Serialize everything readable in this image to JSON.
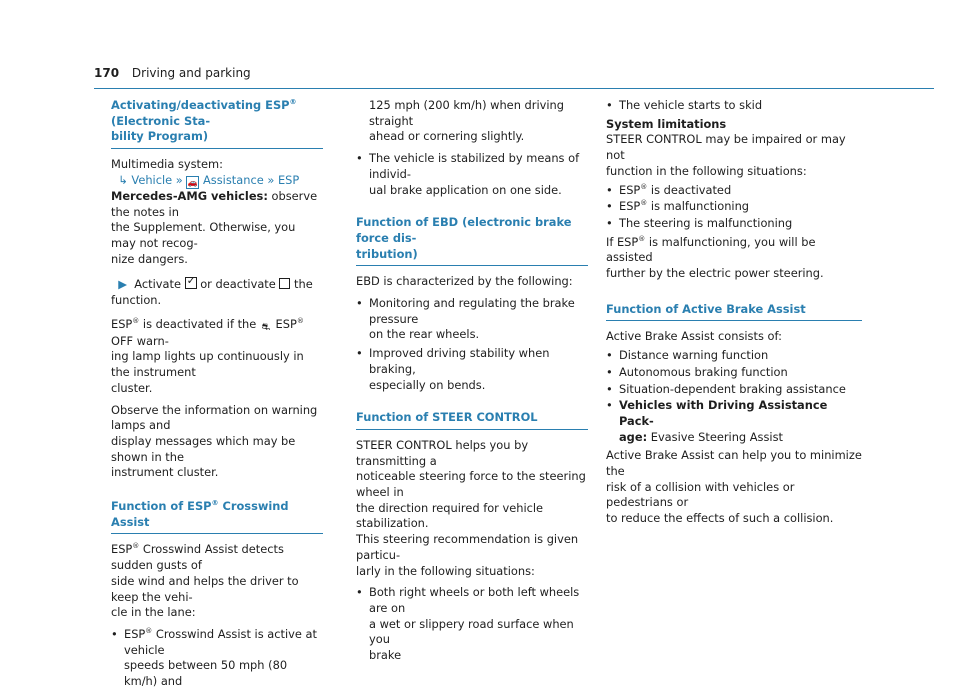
{
  "header": {
    "page_number": "170",
    "section": "Driving and parking"
  },
  "col1": {
    "h1": "Activating/deactivating ESP® (Electronic Stability Program)",
    "h1_a": "Activating/deactivating ESP",
    "h1_b": " (Electronic Sta-",
    "h1_c": "bility Program)",
    "multimedia": "Multimedia system:",
    "nav_vehicle": "Vehicle",
    "nav_assistance": "Assistance",
    "nav_esp": "ESP",
    "amg_label": "Mercedes-AMG vehicles:",
    "amg_text_1": " observe the notes in",
    "amg_text_2": "the Supplement. Otherwise, you may not recog-",
    "amg_text_3": "nize dangers.",
    "activate_1": "Activate",
    "activate_2": "or deactivate",
    "activate_3": "the function.",
    "esp_deact_1": "ESP",
    "esp_deact_2": " is deactivated if the ",
    "esp_deact_3": " ESP",
    "esp_deact_4": " OFF warn-",
    "esp_deact_5": "ing lamp lights up continuously in the instrument",
    "esp_deact_6": "cluster.",
    "observe_1": "Observe the information on warning lamps and",
    "observe_2": "display messages which may be shown in the",
    "observe_3": "instrument cluster.",
    "h2_a": "Function of ESP",
    "h2_b": " Crosswind Assist",
    "cw_1": "ESP",
    "cw_2": " Crosswind Assist detects sudden gusts of",
    "cw_3": "side wind and helps the driver to keep the vehi-",
    "cw_4": "cle in the lane:",
    "cw_b1_a": "ESP",
    "cw_b1_b": " Crosswind Assist is active at vehicle",
    "cw_b1_c": "speeds between 50 mph (80 km/h) and",
    "reg": "®"
  },
  "col2": {
    "cont_1": "125 mph (200 km/h) when driving straight",
    "cont_2": "ahead or cornering slightly.",
    "b2_1": "The vehicle is stabilized by means of individ-",
    "b2_2": "ual brake application on one side.",
    "h3_a": "Function of EBD (electronic brake force dis-",
    "h3_b": "tribution)",
    "ebd_1": "EBD is characterized by the following:",
    "ebd_b1_1": "Monitoring and regulating the brake pressure",
    "ebd_b1_2": "on the rear wheels.",
    "ebd_b2_1": "Improved driving stability when braking,",
    "ebd_b2_2": "especially on bends.",
    "h4": "Function of STEER CONTROL",
    "sc_1": "STEER CONTROL helps you by transmitting a",
    "sc_2": "noticeable steering force to the steering wheel in",
    "sc_3": "the direction required for vehicle stabilization.",
    "sc_4": "This steering recommendation is given particu-",
    "sc_5": "larly in the following situations:",
    "sc_b1_1": "Both right wheels or both left wheels are on",
    "sc_b1_2": "a wet or slippery road surface when you",
    "sc_b1_3": "brake"
  },
  "col3": {
    "b_skid": "The vehicle starts to skid",
    "sys_lim": "System limitations",
    "sl_1": "STEER CONTROL may be impaired or may not",
    "sl_2": "function in the following situations:",
    "sl_b1_a": "ESP",
    "sl_b1_b": " is deactivated",
    "sl_b2_a": "ESP",
    "sl_b2_b": " is malfunctioning",
    "sl_b3": "The steering is malfunctioning",
    "mal_1": "If ESP",
    "mal_2": " is malfunctioning, you will be assisted",
    "mal_3": "further by the electric power steering.",
    "h5": "Function of Active Brake Assist",
    "aba_1": "Active Brake Assist consists of:",
    "aba_b1": "Distance warning function",
    "aba_b2": "Autonomous braking function",
    "aba_b3": "Situation-dependent braking assistance",
    "aba_b4_1": "Vehicles with Driving Assistance Pack-",
    "aba_b4_2": "age:",
    "aba_b4_3": " Evasive Steering Assist",
    "aba_2": "Active Brake Assist can help you to minimize the",
    "aba_3": "risk of a collision with vehicles or pedestrians or",
    "aba_4": "to reduce the effects of such a collision."
  },
  "icons": {
    "bullet": "•",
    "action_arrow": "▶",
    "nav_start": "↳",
    "nav_sep": "»",
    "car_icon": "car-icon",
    "esp_icon": "esp-off-icon"
  },
  "colors": {
    "accent": "#2a7fb0",
    "text": "#1e1e1e"
  }
}
